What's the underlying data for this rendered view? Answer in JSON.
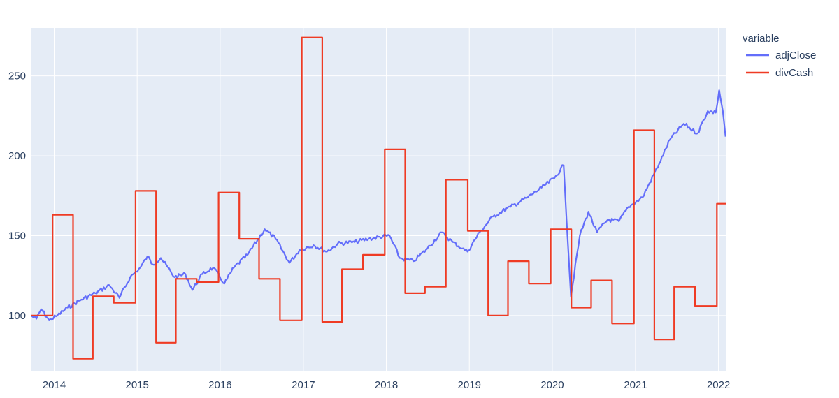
{
  "chart_data": {
    "type": "line",
    "legend_title": "variable",
    "legend_position": "right",
    "grid": true,
    "x_range": [
      "2013-09-20",
      "2022-02-05"
    ],
    "ylim": [
      65,
      280
    ],
    "x_ticks": [
      "2014",
      "2015",
      "2016",
      "2017",
      "2018",
      "2019",
      "2020",
      "2021",
      "2022"
    ],
    "y_ticks": [
      "100",
      "150",
      "200",
      "250"
    ],
    "colors": {
      "plot_bg": "#e5ecf6",
      "grid": "#ffffff",
      "text": "#2a3f5f"
    },
    "series": [
      {
        "name": "adjClose",
        "color": "#636efa",
        "shape": "linear",
        "points": [
          [
            "2013-09-20",
            100
          ],
          [
            "2013-10-15",
            98
          ],
          [
            "2013-11-05",
            104
          ],
          [
            "2013-12-10",
            97
          ],
          [
            "2014-01-15",
            100
          ],
          [
            "2014-03-01",
            105
          ],
          [
            "2014-05-01",
            110
          ],
          [
            "2014-07-01",
            114
          ],
          [
            "2014-09-01",
            119
          ],
          [
            "2014-10-15",
            111
          ],
          [
            "2014-12-01",
            124
          ],
          [
            "2015-01-15",
            130
          ],
          [
            "2015-02-15",
            137
          ],
          [
            "2015-03-10",
            132
          ],
          [
            "2015-04-15",
            136
          ],
          [
            "2015-06-15",
            124
          ],
          [
            "2015-08-01",
            126
          ],
          [
            "2015-09-01",
            116
          ],
          [
            "2015-10-15",
            126
          ],
          [
            "2015-12-01",
            130
          ],
          [
            "2016-01-20",
            120
          ],
          [
            "2016-03-01",
            130
          ],
          [
            "2016-05-01",
            138
          ],
          [
            "2016-07-15",
            154
          ],
          [
            "2016-09-01",
            148
          ],
          [
            "2016-11-01",
            133
          ],
          [
            "2016-12-15",
            141
          ],
          [
            "2017-02-15",
            144
          ],
          [
            "2017-04-15",
            140
          ],
          [
            "2017-06-01",
            145
          ],
          [
            "2017-08-15",
            146
          ],
          [
            "2017-10-15",
            148
          ],
          [
            "2018-01-15",
            150
          ],
          [
            "2018-03-01",
            136
          ],
          [
            "2018-05-01",
            134
          ],
          [
            "2018-07-01",
            142
          ],
          [
            "2018-09-01",
            152
          ],
          [
            "2018-10-20",
            146
          ],
          [
            "2018-12-01",
            142
          ],
          [
            "2018-12-24",
            140
          ],
          [
            "2019-02-15",
            152
          ],
          [
            "2019-04-15",
            162
          ],
          [
            "2019-07-01",
            168
          ],
          [
            "2019-09-15",
            174
          ],
          [
            "2019-11-15",
            180
          ],
          [
            "2020-01-10",
            186
          ],
          [
            "2020-02-20",
            194
          ],
          [
            "2020-03-23",
            112
          ],
          [
            "2020-05-01",
            150
          ],
          [
            "2020-06-08",
            165
          ],
          [
            "2020-07-15",
            152
          ],
          [
            "2020-09-01",
            160
          ],
          [
            "2020-10-20",
            159
          ],
          [
            "2020-12-01",
            168
          ],
          [
            "2021-02-01",
            174
          ],
          [
            "2021-04-15",
            195
          ],
          [
            "2021-06-01",
            210
          ],
          [
            "2021-08-01",
            220
          ],
          [
            "2021-10-01",
            214
          ],
          [
            "2021-11-15",
            228
          ],
          [
            "2021-12-20",
            227
          ],
          [
            "2022-01-04",
            241
          ],
          [
            "2022-01-20",
            228
          ],
          [
            "2022-02-01",
            212
          ]
        ]
      },
      {
        "name": "divCash",
        "color": "#ef3b24",
        "shape": "step",
        "points": [
          [
            "2013-09-20",
            100
          ],
          [
            "2013-12-25",
            163
          ],
          [
            "2014-03-25",
            73
          ],
          [
            "2014-06-20",
            112
          ],
          [
            "2014-09-20",
            108
          ],
          [
            "2014-12-25",
            178
          ],
          [
            "2015-03-25",
            83
          ],
          [
            "2015-06-20",
            123
          ],
          [
            "2015-09-20",
            121
          ],
          [
            "2015-12-25",
            177
          ],
          [
            "2016-03-25",
            148
          ],
          [
            "2016-06-20",
            123
          ],
          [
            "2016-09-20",
            97
          ],
          [
            "2016-12-25",
            274
          ],
          [
            "2017-03-25",
            96
          ],
          [
            "2017-06-20",
            129
          ],
          [
            "2017-09-20",
            138
          ],
          [
            "2017-12-25",
            204
          ],
          [
            "2018-03-25",
            114
          ],
          [
            "2018-06-20",
            118
          ],
          [
            "2018-09-20",
            185
          ],
          [
            "2018-12-25",
            153
          ],
          [
            "2019-03-25",
            100
          ],
          [
            "2019-06-20",
            134
          ],
          [
            "2019-09-20",
            120
          ],
          [
            "2019-12-25",
            154
          ],
          [
            "2020-03-25",
            105
          ],
          [
            "2020-06-20",
            122
          ],
          [
            "2020-09-20",
            95
          ],
          [
            "2020-12-25",
            216
          ],
          [
            "2021-03-25",
            85
          ],
          [
            "2021-06-20",
            118
          ],
          [
            "2021-09-20",
            106
          ],
          [
            "2021-12-25",
            170
          ],
          [
            "2022-02-05",
            170
          ]
        ]
      }
    ]
  }
}
